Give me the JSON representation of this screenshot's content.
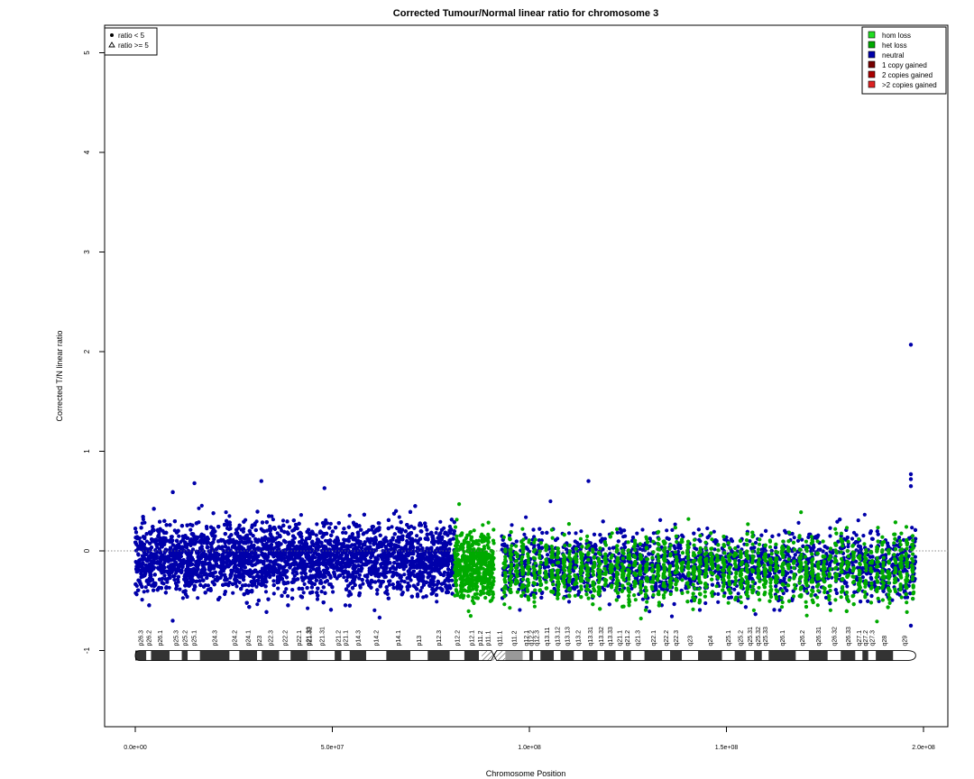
{
  "chart_data": {
    "type": "scatter",
    "title": "Corrected Tumour/Normal linear ratio for chromosome  3",
    "xlabel": "Chromosome Position",
    "ylabel": "Corrected T/N linear ratio",
    "xlim": [
      0,
      200000000
    ],
    "ylim": [
      -1.8,
      5.3
    ],
    "x_ticks": [
      {
        "value": 0,
        "label": "0.0e+00"
      },
      {
        "value": 50000000,
        "label": "5.0e+07"
      },
      {
        "value": 100000000,
        "label": "1.0e+08"
      },
      {
        "value": 150000000,
        "label": "1.5e+08"
      },
      {
        "value": 200000000,
        "label": "2.0e+08"
      }
    ],
    "y_ticks": [
      {
        "value": -1,
        "label": "-1"
      },
      {
        "value": 0,
        "label": "0"
      },
      {
        "value": 1,
        "label": "1"
      },
      {
        "value": 2,
        "label": "2"
      },
      {
        "value": 3,
        "label": "3"
      },
      {
        "value": 4,
        "label": "4"
      },
      {
        "value": 5,
        "label": "5"
      }
    ],
    "reference_line": 0,
    "shape_legend": {
      "placement": "top-left",
      "entries": [
        {
          "symbol": "dot",
          "label": "ratio < 5"
        },
        {
          "symbol": "triangle",
          "label": "ratio >= 5"
        }
      ]
    },
    "state_legend": {
      "placement": "top-right",
      "entries": [
        {
          "label": "hom loss",
          "color": "#22dd22"
        },
        {
          "label": "het loss",
          "color": "#00aa00"
        },
        {
          "label": "neutral",
          "color": "#0000aa"
        },
        {
          "label": "1 copy gained",
          "color": "#770000"
        },
        {
          "label": "2 copies gained",
          "color": "#aa0000"
        },
        {
          "label": ">2 copies gained",
          "color": "#dd2222"
        }
      ]
    },
    "series": [
      {
        "name": "neutral",
        "color": "#0000aa",
        "description_bands": [
          {
            "x0": 0,
            "x1": 81000000,
            "y_low": -0.45,
            "y_high": 0.3
          },
          {
            "x0": 93000000,
            "x1": 198000000,
            "y_low": -0.5,
            "y_high": 0.22
          }
        ],
        "outliers": [
          {
            "x": 15000000,
            "y": 0.68
          },
          {
            "x": 32000000,
            "y": 0.7
          },
          {
            "x": 48000000,
            "y": 0.63
          },
          {
            "x": 115000000,
            "y": 0.7
          },
          {
            "x": 196800000,
            "y": 2.07
          },
          {
            "x": 196800000,
            "y": 0.77
          },
          {
            "x": 196800000,
            "y": 0.72
          },
          {
            "x": 196800000,
            "y": 0.65
          },
          {
            "x": 9500000,
            "y": -0.7
          },
          {
            "x": 62000000,
            "y": -0.67
          },
          {
            "x": 196800000,
            "y": -0.75
          }
        ]
      },
      {
        "name": "het loss",
        "color": "#00aa00",
        "description_bands": [
          {
            "x0": 81000000,
            "x1": 91000000,
            "y_low": -0.5,
            "y_high": 0.2
          },
          {
            "x0": 93000000,
            "x1": 198000000,
            "y_low": -0.55,
            "y_high": 0.18
          }
        ],
        "outliers": []
      }
    ],
    "ideogram": {
      "y": -1.05,
      "centromere": 91000000,
      "bands": [
        {
          "name": "p26.3",
          "start": 0,
          "end": 2800000,
          "stain": "gpos50"
        },
        {
          "name": "p26.2",
          "start": 2800000,
          "end": 4000000,
          "stain": "gneg"
        },
        {
          "name": "p26.1",
          "start": 4000000,
          "end": 8700000,
          "stain": "gpos50"
        },
        {
          "name": "p25.3",
          "start": 8700000,
          "end": 11800000,
          "stain": "gneg"
        },
        {
          "name": "p25.2",
          "start": 11800000,
          "end": 13300000,
          "stain": "gpos25"
        },
        {
          "name": "p25.1",
          "start": 13300000,
          "end": 16400000,
          "stain": "gneg"
        },
        {
          "name": "p24.3",
          "start": 16400000,
          "end": 23900000,
          "stain": "gpos100"
        },
        {
          "name": "p24.2",
          "start": 23900000,
          "end": 26400000,
          "stain": "gneg"
        },
        {
          "name": "p24.1",
          "start": 26400000,
          "end": 30900000,
          "stain": "gpos75"
        },
        {
          "name": "p23",
          "start": 30900000,
          "end": 32100000,
          "stain": "gneg"
        },
        {
          "name": "p22.3",
          "start": 32100000,
          "end": 36500000,
          "stain": "gpos50"
        },
        {
          "name": "p22.2",
          "start": 36500000,
          "end": 39400000,
          "stain": "gneg"
        },
        {
          "name": "p22.1",
          "start": 39400000,
          "end": 43700000,
          "stain": "gpos75"
        },
        {
          "name": "p21.33",
          "start": 43700000,
          "end": 44100000,
          "stain": "gneg"
        },
        {
          "name": "p21.32",
          "start": 44100000,
          "end": 44200000,
          "stain": "gpos50"
        },
        {
          "name": "p21.31",
          "start": 44200000,
          "end": 50600000,
          "stain": "gneg"
        },
        {
          "name": "p21.2",
          "start": 50600000,
          "end": 52300000,
          "stain": "gpos25"
        },
        {
          "name": "p21.1",
          "start": 52300000,
          "end": 54400000,
          "stain": "gneg"
        },
        {
          "name": "p14.3",
          "start": 54400000,
          "end": 58600000,
          "stain": "gpos50"
        },
        {
          "name": "p14.2",
          "start": 58600000,
          "end": 63700000,
          "stain": "gneg"
        },
        {
          "name": "p14.1",
          "start": 63700000,
          "end": 69800000,
          "stain": "gpos50"
        },
        {
          "name": "p13",
          "start": 69800000,
          "end": 74200000,
          "stain": "gneg"
        },
        {
          "name": "p12.3",
          "start": 74200000,
          "end": 79800000,
          "stain": "gpos75"
        },
        {
          "name": "p12.2",
          "start": 79800000,
          "end": 83500000,
          "stain": "gneg"
        },
        {
          "name": "p12.1",
          "start": 83500000,
          "end": 87200000,
          "stain": "gpos75"
        },
        {
          "name": "p11.2",
          "start": 87200000,
          "end": 87900000,
          "stain": "gneg"
        },
        {
          "name": "p11.1",
          "start": 87900000,
          "end": 91000000,
          "stain": "acen"
        },
        {
          "name": "q11.1",
          "start": 91000000,
          "end": 93900000,
          "stain": "acen"
        },
        {
          "name": "q11.2",
          "start": 93900000,
          "end": 98300000,
          "stain": "gvar"
        },
        {
          "name": "q12.1",
          "start": 98300000,
          "end": 100000000,
          "stain": "gneg"
        },
        {
          "name": "q12.2",
          "start": 100000000,
          "end": 100900000,
          "stain": "gpos25"
        },
        {
          "name": "q12.3",
          "start": 100900000,
          "end": 102800000,
          "stain": "gneg"
        },
        {
          "name": "q13.11",
          "start": 102800000,
          "end": 106200000,
          "stain": "gpos75"
        },
        {
          "name": "q13.12",
          "start": 106200000,
          "end": 107900000,
          "stain": "gneg"
        },
        {
          "name": "q13.13",
          "start": 107900000,
          "end": 111300000,
          "stain": "gpos50"
        },
        {
          "name": "q13.2",
          "start": 111300000,
          "end": 113500000,
          "stain": "gneg"
        },
        {
          "name": "q13.31",
          "start": 113500000,
          "end": 117300000,
          "stain": "gpos75"
        },
        {
          "name": "q13.32",
          "start": 117300000,
          "end": 119000000,
          "stain": "gneg"
        },
        {
          "name": "q13.33",
          "start": 119000000,
          "end": 121900000,
          "stain": "gpos75"
        },
        {
          "name": "q21.1",
          "start": 121900000,
          "end": 123800000,
          "stain": "gneg"
        },
        {
          "name": "q21.2",
          "start": 123800000,
          "end": 125800000,
          "stain": "gpos25"
        },
        {
          "name": "q21.3",
          "start": 125800000,
          "end": 129200000,
          "stain": "gneg"
        },
        {
          "name": "q22.1",
          "start": 129200000,
          "end": 133700000,
          "stain": "gpos25"
        },
        {
          "name": "q22.2",
          "start": 133700000,
          "end": 135700000,
          "stain": "gneg"
        },
        {
          "name": "q22.3",
          "start": 135700000,
          "end": 138700000,
          "stain": "gpos25"
        },
        {
          "name": "q23",
          "start": 138700000,
          "end": 142800000,
          "stain": "gneg"
        },
        {
          "name": "q24",
          "start": 142800000,
          "end": 148900000,
          "stain": "gpos100"
        },
        {
          "name": "q25.1",
          "start": 148900000,
          "end": 152100000,
          "stain": "gneg"
        },
        {
          "name": "q25.2",
          "start": 152100000,
          "end": 155000000,
          "stain": "gpos50"
        },
        {
          "name": "q25.31",
          "start": 155000000,
          "end": 157000000,
          "stain": "gneg"
        },
        {
          "name": "q25.32",
          "start": 157000000,
          "end": 159000000,
          "stain": "gpos50"
        },
        {
          "name": "q25.33",
          "start": 159000000,
          "end": 160700000,
          "stain": "gneg"
        },
        {
          "name": "q26.1",
          "start": 160700000,
          "end": 167600000,
          "stain": "gpos100"
        },
        {
          "name": "q26.2",
          "start": 167600000,
          "end": 170900000,
          "stain": "gneg"
        },
        {
          "name": "q26.31",
          "start": 170900000,
          "end": 175700000,
          "stain": "gpos75"
        },
        {
          "name": "q26.32",
          "start": 175700000,
          "end": 179000000,
          "stain": "gneg"
        },
        {
          "name": "q26.33",
          "start": 179000000,
          "end": 182700000,
          "stain": "gpos75"
        },
        {
          "name": "q27.1",
          "start": 182700000,
          "end": 184500000,
          "stain": "gneg"
        },
        {
          "name": "q27.2",
          "start": 184500000,
          "end": 186000000,
          "stain": "gpos25"
        },
        {
          "name": "q27.3",
          "start": 186000000,
          "end": 187900000,
          "stain": "gneg"
        },
        {
          "name": "q28",
          "start": 187900000,
          "end": 192300000,
          "stain": "gpos75"
        },
        {
          "name": "q29",
          "start": 192300000,
          "end": 198022430,
          "stain": "gneg"
        }
      ]
    }
  }
}
